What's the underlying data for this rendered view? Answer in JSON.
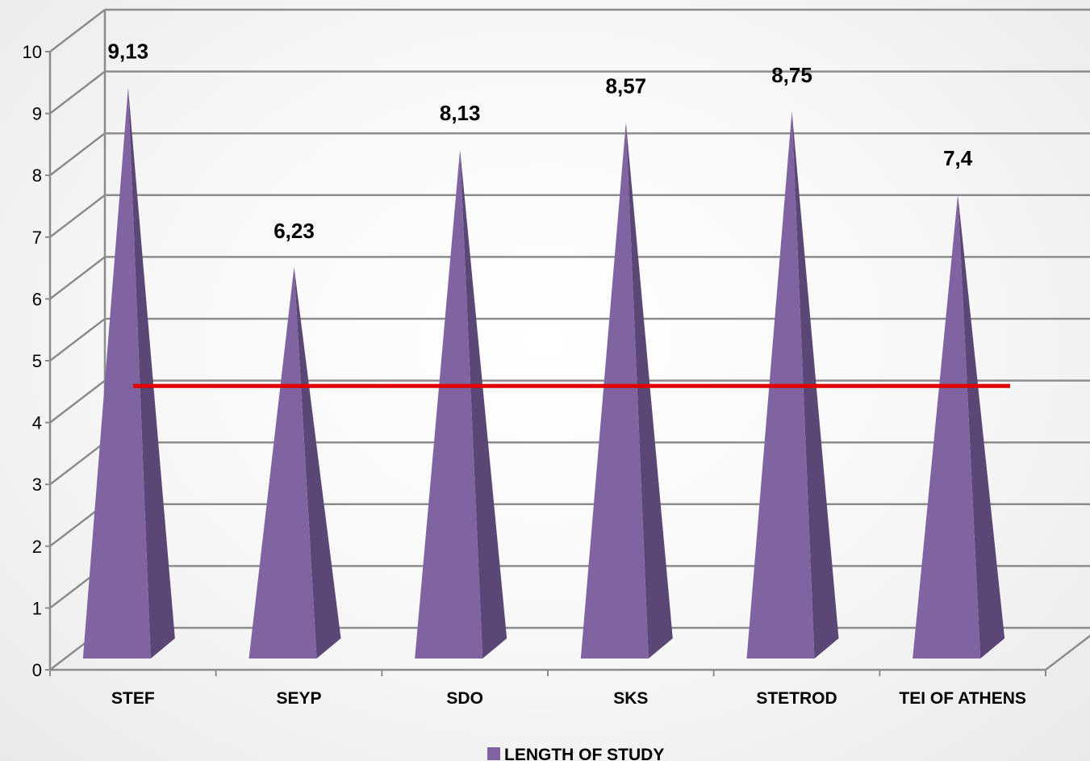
{
  "chart_data": {
    "type": "bar",
    "bar_shape": "pyramid",
    "categories": [
      "STEF",
      "SEYP",
      "SDO",
      "SKS",
      "STETROD",
      "TEI OF ATHENS"
    ],
    "series": [
      {
        "name": "LENGTH OF STUDY",
        "values": [
          9.13,
          6.23,
          8.13,
          8.57,
          8.75,
          7.4
        ],
        "labels": [
          "9,13",
          "6,23",
          "8,13",
          "8,57",
          "8,75",
          "7,4"
        ],
        "color": "#8064a2"
      }
    ],
    "reference_line": {
      "value": 4.5,
      "color": "#e00000"
    },
    "ylim": [
      0,
      10
    ],
    "yticks": [
      "0",
      "1",
      "2",
      "3",
      "4",
      "5",
      "6",
      "7",
      "8",
      "9",
      "10"
    ],
    "grid": true,
    "legend": "bottom-center",
    "colors": {
      "bar_front": "#8064a2",
      "bar_side": "#5b4775",
      "grid": "#8c8c8c",
      "reference": "#e00000"
    }
  }
}
